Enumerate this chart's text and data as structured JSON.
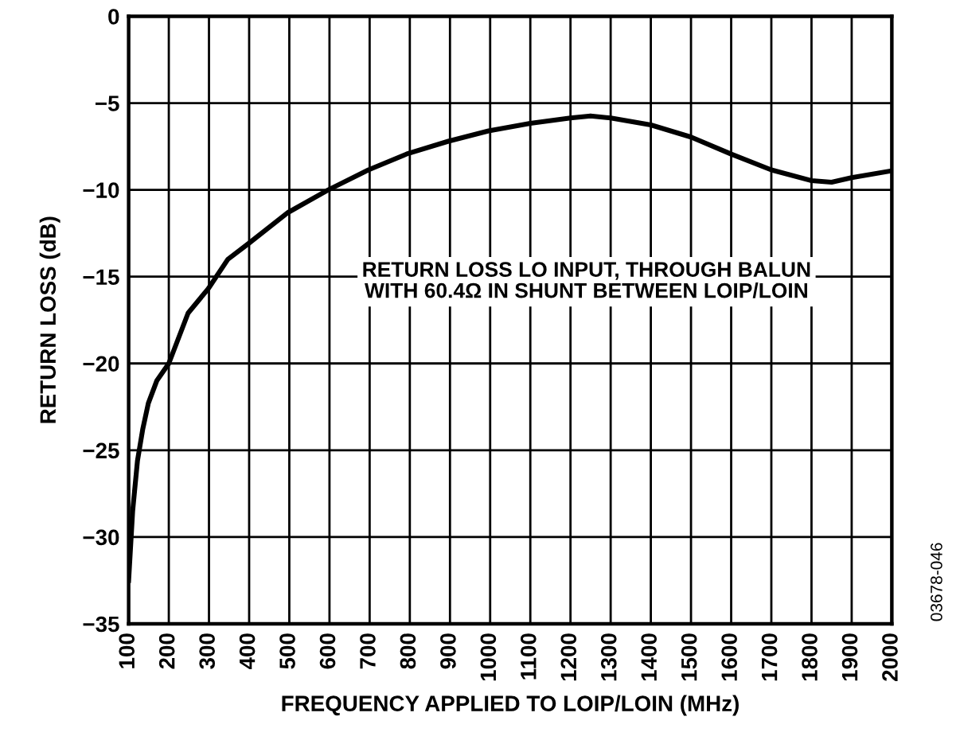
{
  "chart_data": {
    "type": "line",
    "xlabel": "FREQUENCY APPLIED TO LOIP/LOIN (MHz)",
    "ylabel": "RETURN LOSS (dB)",
    "annotations": [
      "RETURN LOSS LO INPUT, THROUGH BALUN\nWITH 60.4Ω IN SHUNT BETWEEN LOIP/LOIN",
      "03678-046"
    ],
    "x": [
      100,
      110,
      122,
      135,
      149,
      170,
      200,
      248,
      298,
      347,
      398,
      497,
      597,
      697,
      796,
      896,
      996,
      1100,
      1200,
      1250,
      1300,
      1400,
      1500,
      1600,
      1700,
      1800,
      1850,
      1900,
      2000
    ],
    "series": [
      {
        "color": "#000000",
        "values": [
          -32.5,
          -28.5,
          -25.6,
          -23.8,
          -22.3,
          -21.0,
          -20.0,
          -17.1,
          -15.7,
          -14.0,
          -13.1,
          -11.3,
          -10.0,
          -8.85,
          -7.9,
          -7.2,
          -6.6,
          -6.17,
          -5.86,
          -5.74,
          -5.86,
          -6.26,
          -6.96,
          -7.94,
          -8.85,
          -9.47,
          -9.56,
          -9.3,
          -8.9
        ]
      }
    ],
    "xlim": [
      100,
      2000
    ],
    "xticks": [
      100,
      200,
      300,
      400,
      500,
      600,
      700,
      800,
      900,
      1000,
      1100,
      1200,
      1300,
      1400,
      1500,
      1600,
      1700,
      1800,
      1900,
      2000
    ],
    "ylim": [
      -35,
      0
    ],
    "yticks": [
      {
        "value": -35,
        "label": "−35"
      },
      {
        "value": -30,
        "label": "−30"
      },
      {
        "value": -25,
        "label": "−25"
      },
      {
        "value": -20,
        "label": "−20"
      },
      {
        "value": -15,
        "label": "−15"
      },
      {
        "value": -10,
        "label": "−10"
      },
      {
        "value": -5,
        "label": "−5"
      },
      0
    ],
    "grid": true,
    "marker": "none",
    "line_style": "solid"
  }
}
